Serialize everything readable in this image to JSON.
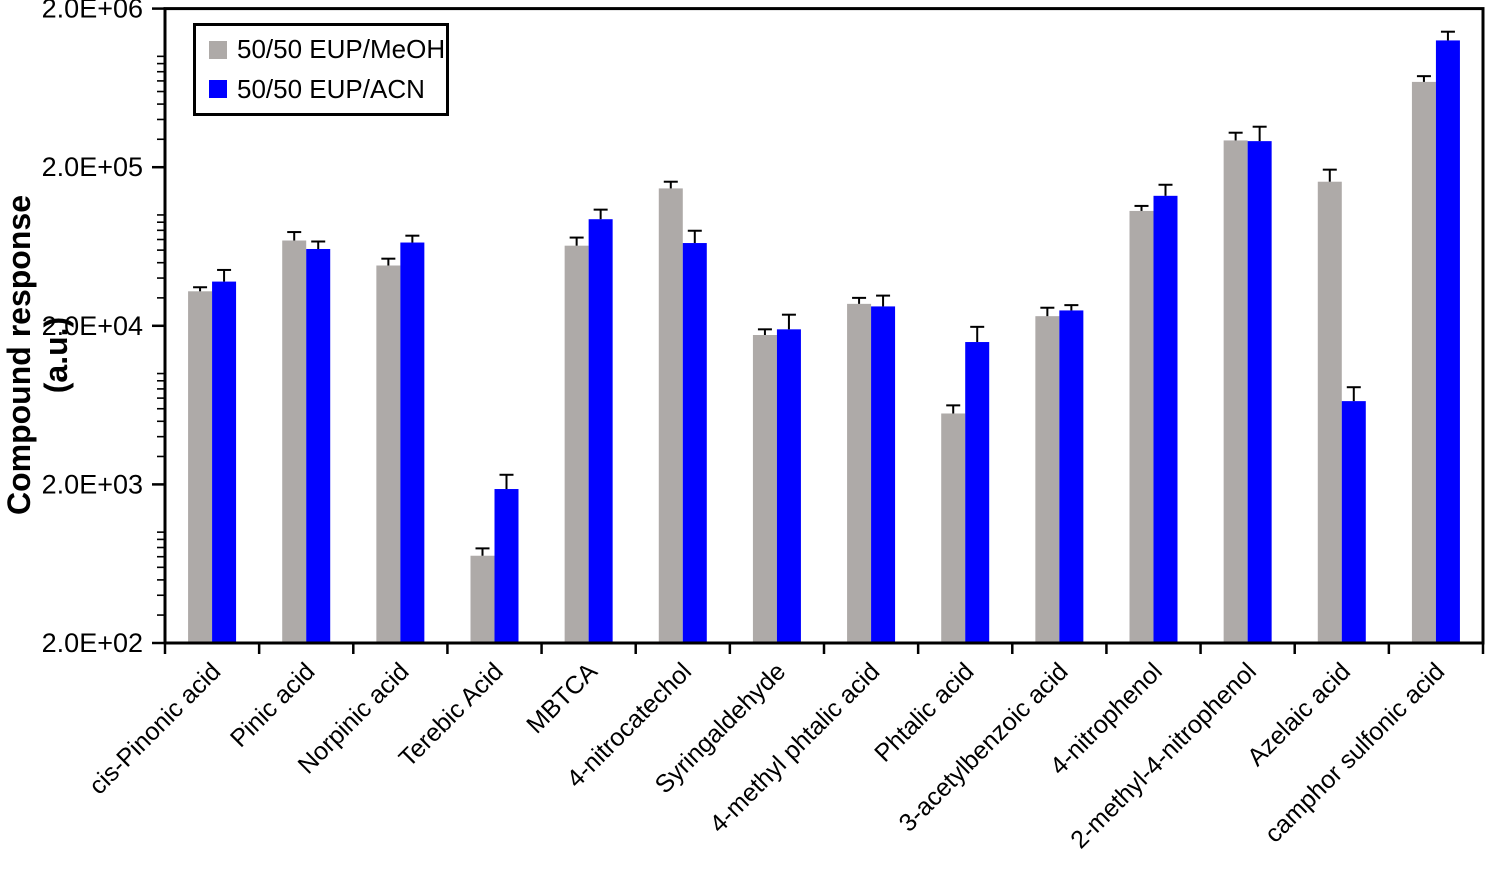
{
  "chart_data": {
    "type": "bar",
    "title": "",
    "xlabel": "",
    "ylabel": "Compound response (a.u.)",
    "y_scale": "log",
    "ylim": [
      200,
      2000000
    ],
    "grid": false,
    "legend_position": "top-left",
    "y_ticks": [
      {
        "label": "2.0E+06",
        "value": 2000000
      },
      {
        "label": "2.0E+05",
        "value": 200000
      },
      {
        "label": "2.0E+04",
        "value": 20000
      },
      {
        "label": "2.0E+03",
        "value": 2000
      },
      {
        "label": "2.0E+02",
        "value": 200
      }
    ],
    "categories": [
      "cis-Pinonic acid",
      "Pinic acid",
      "Norpinic acid",
      "Terebic Acid",
      "MBTCA",
      "4-nitrocatechol",
      "Syringaldehyde",
      "4-methyl phtalic acid",
      "Phtalic acid",
      "3-acetylbenzoic acid",
      "4-nitrophenol",
      "2-methyl-4-nitrophenol",
      "Azelaic acid",
      "camphor sulfonic acid"
    ],
    "series": [
      {
        "name": "50/50 EUP/MeOH",
        "color": "#aeaaa8",
        "values": [
          33000,
          69000,
          48000,
          710,
          64000,
          147000,
          17500,
          27500,
          5600,
          23000,
          106000,
          295000,
          162000,
          690000
        ],
        "error_upper": [
          35000,
          78000,
          53000,
          790,
          72000,
          162000,
          19000,
          30000,
          6300,
          26000,
          114000,
          330000,
          193000,
          750000
        ]
      },
      {
        "name": "50/50 EUP/ACN",
        "color": "#0000ff",
        "values": [
          38000,
          61000,
          67000,
          1870,
          94000,
          66500,
          19000,
          26500,
          15800,
          25000,
          132000,
          292000,
          6700,
          1260000
        ],
        "error_upper": [
          45000,
          68000,
          74000,
          2300,
          108000,
          79500,
          23500,
          31000,
          19700,
          27000,
          155000,
          360000,
          8200,
          1430000
        ]
      }
    ]
  }
}
